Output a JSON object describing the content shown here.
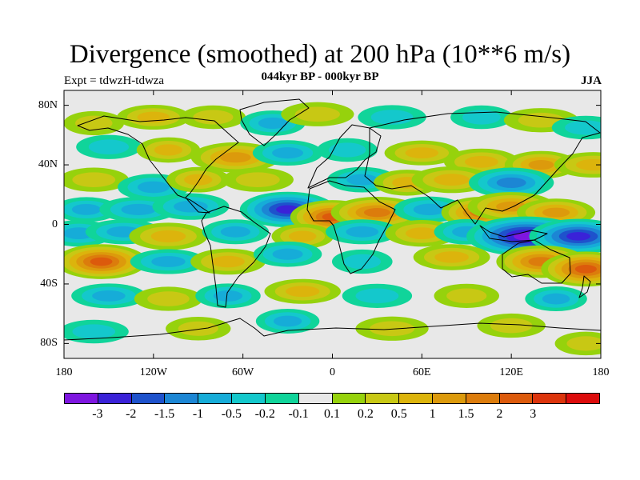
{
  "title": "Divergence (smoothed) at 200 hPa (10**6 m/s)",
  "subtitle": "044kyr BP - 000kyr BP",
  "experiment_label": "Expt = tdwzH-tdwza",
  "season_label": "JJA",
  "map": {
    "projection": "cylindrical-equidistant",
    "lon_range": [
      -180,
      180
    ],
    "lat_range": [
      -90,
      90
    ],
    "ocean_background": "#e8e8e8",
    "coastline_color": "#000000",
    "y_ticks": [
      {
        "lat": 80,
        "label": "80N"
      },
      {
        "lat": 40,
        "label": "40N"
      },
      {
        "lat": 0,
        "label": "0"
      },
      {
        "lat": -40,
        "label": "40S"
      },
      {
        "lat": -80,
        "label": "80S"
      }
    ],
    "x_ticks": [
      {
        "lon": -180,
        "label": "180"
      },
      {
        "lon": -120,
        "label": "120W"
      },
      {
        "lon": -60,
        "label": "60W"
      },
      {
        "lon": 0,
        "label": "0"
      },
      {
        "lon": 60,
        "label": "60E"
      },
      {
        "lon": 120,
        "label": "120E"
      },
      {
        "lon": 180,
        "label": "180"
      }
    ]
  },
  "colorbar": {
    "colors": [
      "#7e16e0",
      "#3a22d8",
      "#1e52cc",
      "#1c86d4",
      "#16acd8",
      "#14c8cc",
      "#10d49a",
      "#e8e8e8",
      "#96d20c",
      "#c8c814",
      "#dcb40c",
      "#dc9a0c",
      "#dc7c0c",
      "#dc5a0c",
      "#dc340c",
      "#dc0c0c"
    ],
    "labels": [
      "-3",
      "-2",
      "-1.5",
      "-1",
      "-0.5",
      "-0.2",
      "-0.1",
      "0.1",
      "0.2",
      "0.5",
      "1",
      "1.5",
      "2",
      "3"
    ]
  },
  "field_anomalies": [
    {
      "lon": -160,
      "lat": 68,
      "value": 0.4
    },
    {
      "lon": -120,
      "lat": 72,
      "value": 0.5
    },
    {
      "lon": -80,
      "lat": 72,
      "value": 0.3
    },
    {
      "lon": -40,
      "lat": 68,
      "value": -0.6
    },
    {
      "lon": -10,
      "lat": 74,
      "value": 0.4
    },
    {
      "lon": 40,
      "lat": 72,
      "value": -0.4
    },
    {
      "lon": 100,
      "lat": 72,
      "value": -0.3
    },
    {
      "lon": 140,
      "lat": 70,
      "value": 0.4
    },
    {
      "lon": 170,
      "lat": 65,
      "value": -0.3
    },
    {
      "lon": -150,
      "lat": 52,
      "value": -0.4
    },
    {
      "lon": -110,
      "lat": 50,
      "value": 0.6
    },
    {
      "lon": -65,
      "lat": 45,
      "value": 1.4
    },
    {
      "lon": -30,
      "lat": 48,
      "value": -0.6
    },
    {
      "lon": 10,
      "lat": 50,
      "value": -0.3
    },
    {
      "lon": 60,
      "lat": 48,
      "value": 0.5
    },
    {
      "lon": 100,
      "lat": 42,
      "value": 0.8
    },
    {
      "lon": 140,
      "lat": 40,
      "value": 1.0
    },
    {
      "lon": 175,
      "lat": 40,
      "value": 0.6
    },
    {
      "lon": -160,
      "lat": 30,
      "value": 0.4
    },
    {
      "lon": -120,
      "lat": 25,
      "value": -0.8
    },
    {
      "lon": -90,
      "lat": 30,
      "value": 0.6
    },
    {
      "lon": -50,
      "lat": 30,
      "value": 0.4
    },
    {
      "lon": 20,
      "lat": 30,
      "value": -0.6
    },
    {
      "lon": 50,
      "lat": 28,
      "value": 0.7
    },
    {
      "lon": 80,
      "lat": 30,
      "value": 0.8
    },
    {
      "lon": 120,
      "lat": 28,
      "value": -1.4
    },
    {
      "lon": -165,
      "lat": 10,
      "value": -0.5
    },
    {
      "lon": -130,
      "lat": 10,
      "value": -0.6
    },
    {
      "lon": -95,
      "lat": 12,
      "value": -0.8
    },
    {
      "lon": -30,
      "lat": 10,
      "value": -2.3
    },
    {
      "lon": 0,
      "lat": 5,
      "value": 2.0
    },
    {
      "lon": 30,
      "lat": 8,
      "value": 1.6
    },
    {
      "lon": 65,
      "lat": 10,
      "value": -0.7
    },
    {
      "lon": 100,
      "lat": 8,
      "value": 1.6
    },
    {
      "lon": 120,
      "lat": 12,
      "value": 1.2
    },
    {
      "lon": 150,
      "lat": 8,
      "value": 1.0
    },
    {
      "lon": -170,
      "lat": -6,
      "value": -0.8
    },
    {
      "lon": -140,
      "lat": -5,
      "value": -0.5
    },
    {
      "lon": -110,
      "lat": -8,
      "value": 0.9
    },
    {
      "lon": -65,
      "lat": -5,
      "value": -0.5
    },
    {
      "lon": -20,
      "lat": -8,
      "value": 0.5
    },
    {
      "lon": 20,
      "lat": -5,
      "value": -0.5
    },
    {
      "lon": 60,
      "lat": -6,
      "value": 0.8
    },
    {
      "lon": 90,
      "lat": -5,
      "value": -0.6
    },
    {
      "lon": 130,
      "lat": -8,
      "value": -3.2
    },
    {
      "lon": 165,
      "lat": -8,
      "value": -2.2
    },
    {
      "lon": -155,
      "lat": -25,
      "value": 2.2
    },
    {
      "lon": -110,
      "lat": -25,
      "value": -0.5
    },
    {
      "lon": -70,
      "lat": -25,
      "value": 0.7
    },
    {
      "lon": -30,
      "lat": -20,
      "value": -0.6
    },
    {
      "lon": 20,
      "lat": -25,
      "value": -0.4
    },
    {
      "lon": 80,
      "lat": -22,
      "value": 0.7
    },
    {
      "lon": 140,
      "lat": -25,
      "value": 1.8
    },
    {
      "lon": 170,
      "lat": -30,
      "value": 2.2
    },
    {
      "lon": -150,
      "lat": -48,
      "value": -0.5
    },
    {
      "lon": -110,
      "lat": -50,
      "value": 0.4
    },
    {
      "lon": -70,
      "lat": -48,
      "value": -0.5
    },
    {
      "lon": -20,
      "lat": -45,
      "value": 0.5
    },
    {
      "lon": 30,
      "lat": -48,
      "value": -0.4
    },
    {
      "lon": 90,
      "lat": -48,
      "value": 0.4
    },
    {
      "lon": 150,
      "lat": -50,
      "value": -0.5
    },
    {
      "lon": -160,
      "lat": -72,
      "value": -0.3
    },
    {
      "lon": -90,
      "lat": -70,
      "value": 0.3
    },
    {
      "lon": -30,
      "lat": -65,
      "value": -0.5
    },
    {
      "lon": 40,
      "lat": -70,
      "value": 0.4
    },
    {
      "lon": 120,
      "lat": -68,
      "value": 0.4
    },
    {
      "lon": 170,
      "lat": -80,
      "value": 0.3
    }
  ]
}
